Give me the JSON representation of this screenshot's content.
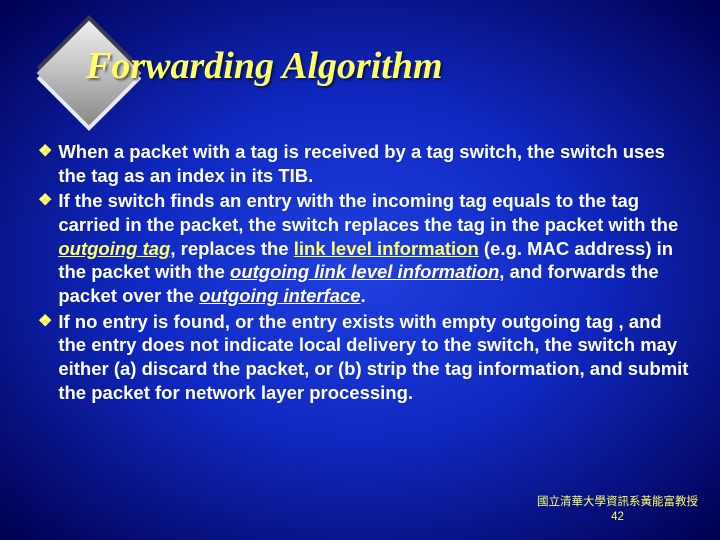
{
  "slide": {
    "background_colors": {
      "center": "#2040e0",
      "mid": "#1028c0",
      "edge": "#000050"
    },
    "accent_color": "#ffff66",
    "text_color": "#ffffff",
    "title": "Forwarding Algorithm",
    "title_fontsize": 38,
    "title_font": "Times New Roman Italic Bold",
    "body_fontsize": 18.5,
    "body_font": "Arial Bold",
    "bullet_glyph": "❖",
    "diamond": {
      "fill_gradient": [
        "#f0f0f0",
        "#c9c9c9",
        "#888888"
      ],
      "shadow_dark": "#3a3a50",
      "shadow_light": "#e8e8f8"
    },
    "bullets": {
      "b1": {
        "t1": "When a packet with a tag is received by a tag switch, the switch uses the tag as an index in its TIB."
      },
      "b2": {
        "t1": "If the switch finds an entry with the incoming tag equals to the tag carried in the packet, the switch replaces the tag in the packet with the ",
        "outgoing_tag": "outgoing tag",
        "t2": ", replaces the ",
        "link_level_info": "link level information",
        "t3": " (e.g. MAC address) in the packet with the ",
        "outgoing_lli": "outgoing link level information",
        "t4": ", and forwards the packet over the ",
        "outgoing_iface": "outgoing interface",
        "t5": "."
      },
      "b3": {
        "t1": "If no entry is found, or the entry exists with empty outgoing tag , and the entry does not indicate local delivery to the switch, the switch may either (a) discard the packet, or (b) strip the tag information, and submit the packet for network layer processing."
      }
    },
    "footer": {
      "line1": "國立清華大學資訊系黃能富教授",
      "page": "42"
    }
  }
}
